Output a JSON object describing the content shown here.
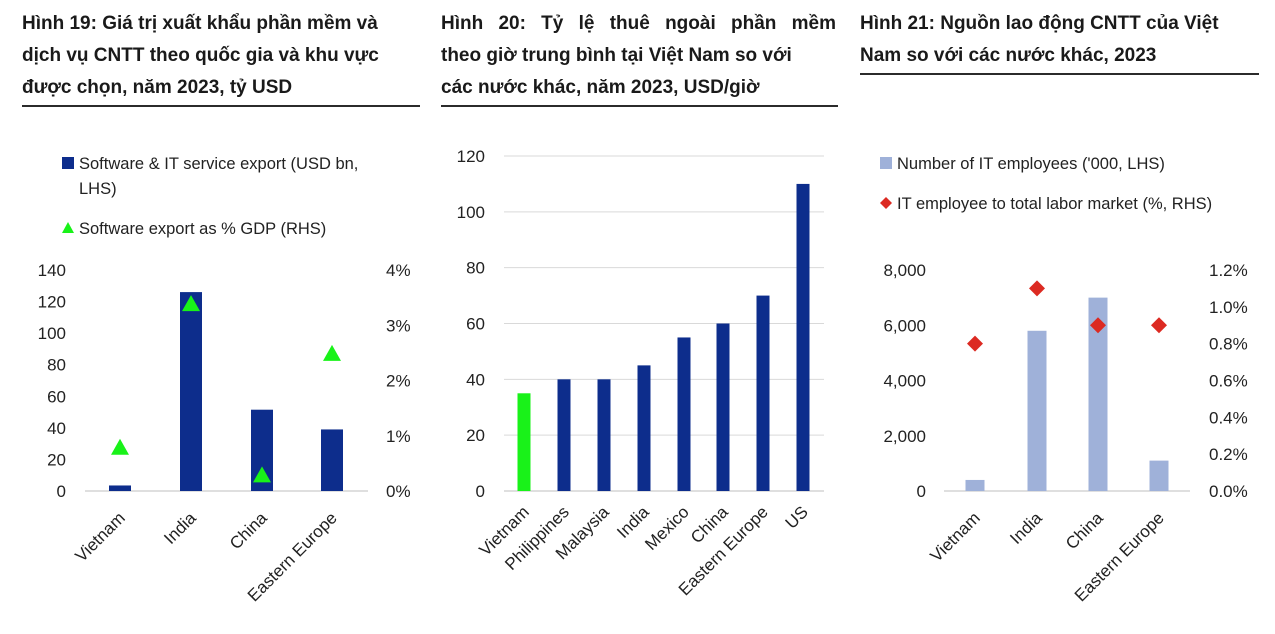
{
  "charts": [
    {
      "title_lines": [
        "Hình 19: Giá trị xuất khẩu phần mềm và",
        "dịch vụ CNTT theo quốc gia và khu vực",
        "được chọn, năm 2023, tỷ USD"
      ],
      "legend": [
        {
          "label_lines": [
            "Software & IT service export (USD bn,",
            "LHS)"
          ],
          "marker": "square",
          "color": "#0d2d8c"
        },
        {
          "label_lines": [
            "Software export as % GDP (RHS)"
          ],
          "marker": "triangle",
          "color": "#19f219"
        }
      ],
      "left_ticks": [
        "140",
        "120",
        "100",
        "80",
        "60",
        "40",
        "20",
        "0"
      ],
      "right_ticks": [
        "4%",
        "3%",
        "2%",
        "1%",
        "0%"
      ]
    },
    {
      "title_lines": [
        "Hình 20: Tỷ lệ thuê ngoài phần mềm",
        "theo giờ trung bình tại Việt Nam so với",
        "các nước khác, năm 2023, USD/giờ"
      ],
      "legend": [],
      "left_ticks": [
        "120",
        "100",
        "80",
        "60",
        "40",
        "20",
        "0"
      ],
      "right_ticks": []
    },
    {
      "title_lines": [
        "Hình 21: Nguồn lao động CNTT của Việt",
        "Nam so với các nước khác, 2023"
      ],
      "legend": [
        {
          "label_lines": [
            "Number of IT employees ('000, LHS)"
          ],
          "marker": "square",
          "color": "#9fb1d9"
        },
        {
          "label_lines": [
            "IT employee to total labor market (%, RHS)"
          ],
          "marker": "diamond",
          "color": "#dc2a22"
        }
      ],
      "left_ticks": [
        "8,000",
        "6,000",
        "4,000",
        "2,000",
        "0"
      ],
      "right_ticks": [
        "1.2%",
        "1.0%",
        "0.8%",
        "0.6%",
        "0.4%",
        "0.2%",
        "0.0%"
      ]
    }
  ],
  "chart_data": [
    {
      "type": "bar",
      "title": "Hình 19: Giá trị xuất khẩu phần mềm và dịch vụ CNTT theo quốc gia và khu vực được chọn, năm 2023, tỷ USD",
      "categories": [
        "Vietnam",
        "India",
        "China",
        "Eastern Europe"
      ],
      "series": [
        {
          "name": "Software & IT service export (USD bn, LHS)",
          "type": "bar",
          "axis": "left",
          "color": "#0d2d8c",
          "values": [
            3.5,
            126,
            51.5,
            39
          ]
        },
        {
          "name": "Software export as % GDP (RHS)",
          "type": "scatter",
          "marker": "triangle",
          "axis": "right",
          "color": "#19f219",
          "values": [
            0.8,
            3.4,
            0.3,
            2.5
          ]
        }
      ],
      "ylim_left": [
        0,
        140
      ],
      "ylim_right": [
        0,
        4
      ],
      "grid": false,
      "legend_position": "top"
    },
    {
      "type": "bar",
      "title": "Hình 20: Tỷ lệ thuê ngoài phần mềm theo giờ trung bình tại Việt Nam so với các nước khác, năm 2023, USD/giờ",
      "categories": [
        "Vietnam",
        "Philippines",
        "Malaysia",
        "India",
        "Mexico",
        "China",
        "Eastern Europe",
        "US"
      ],
      "values": [
        35,
        40,
        40,
        45,
        55,
        60,
        70,
        110
      ],
      "colors": [
        "#19f219",
        "#0d2d8c",
        "#0d2d8c",
        "#0d2d8c",
        "#0d2d8c",
        "#0d2d8c",
        "#0d2d8c",
        "#0d2d8c"
      ],
      "ylim": [
        0,
        120
      ],
      "grid": true
    },
    {
      "type": "bar",
      "title": "Hình 21: Nguồn lao động CNTT của Việt Nam so với các nước khác, 2023",
      "categories": [
        "Vietnam",
        "India",
        "China",
        "Eastern Europe"
      ],
      "series": [
        {
          "name": "Number of IT employees ('000, LHS)",
          "type": "bar",
          "axis": "left",
          "color": "#9fb1d9",
          "values": [
            400,
            5800,
            7000,
            1100
          ]
        },
        {
          "name": "IT employee to total labor market (%, RHS)",
          "type": "scatter",
          "marker": "diamond",
          "axis": "right",
          "color": "#dc2a22",
          "values": [
            0.8,
            1.1,
            0.9,
            0.9
          ]
        }
      ],
      "ylim_left": [
        0,
        8000
      ],
      "ylim_right": [
        0,
        1.2
      ],
      "grid": false,
      "legend_position": "top"
    }
  ]
}
